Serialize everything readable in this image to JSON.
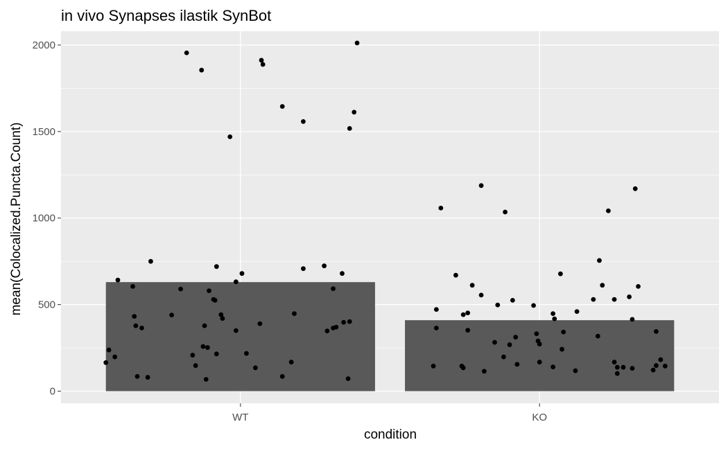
{
  "chart_data": {
    "type": "bar",
    "title": "in vivo Synapses ilastik SynBot",
    "xlabel": "condition",
    "ylabel": "mean(Colocalized.Puncta.Count)",
    "categories": [
      "WT",
      "KO"
    ],
    "values": [
      630,
      410
    ],
    "ylim": [
      -70,
      2080
    ],
    "yticks": [
      0,
      500,
      1000,
      1500,
      2000
    ],
    "grid": true,
    "legend": "none",
    "colors": {
      "panel": "#ebebeb",
      "grid": "#ffffff",
      "bar": "#595959",
      "point": "#000000"
    },
    "points": [
      {
        "condition": "WT",
        "offset": -0.45,
        "value": 165
      },
      {
        "condition": "WT",
        "offset": -0.44,
        "value": 238
      },
      {
        "condition": "WT",
        "offset": -0.42,
        "value": 198
      },
      {
        "condition": "WT",
        "offset": -0.41,
        "value": 642
      },
      {
        "condition": "WT",
        "offset": -0.36,
        "value": 605
      },
      {
        "condition": "WT",
        "offset": -0.355,
        "value": 432
      },
      {
        "condition": "WT",
        "offset": -0.35,
        "value": 378
      },
      {
        "condition": "WT",
        "offset": -0.345,
        "value": 85
      },
      {
        "condition": "WT",
        "offset": -0.33,
        "value": 365
      },
      {
        "condition": "WT",
        "offset": -0.31,
        "value": 80
      },
      {
        "condition": "WT",
        "offset": -0.3,
        "value": 750
      },
      {
        "condition": "WT",
        "offset": -0.23,
        "value": 440
      },
      {
        "condition": "WT",
        "offset": -0.2,
        "value": 590
      },
      {
        "condition": "WT",
        "offset": -0.18,
        "value": 1955
      },
      {
        "condition": "WT",
        "offset": -0.16,
        "value": 208
      },
      {
        "condition": "WT",
        "offset": -0.15,
        "value": 148
      },
      {
        "condition": "WT",
        "offset": -0.13,
        "value": 1855
      },
      {
        "condition": "WT",
        "offset": -0.125,
        "value": 258
      },
      {
        "condition": "WT",
        "offset": -0.12,
        "value": 378
      },
      {
        "condition": "WT",
        "offset": -0.115,
        "value": 68
      },
      {
        "condition": "WT",
        "offset": -0.11,
        "value": 252
      },
      {
        "condition": "WT",
        "offset": -0.105,
        "value": 580
      },
      {
        "condition": "WT",
        "offset": -0.09,
        "value": 530
      },
      {
        "condition": "WT",
        "offset": -0.085,
        "value": 525
      },
      {
        "condition": "WT",
        "offset": -0.08,
        "value": 215
      },
      {
        "condition": "WT",
        "offset": -0.08,
        "value": 720
      },
      {
        "condition": "WT",
        "offset": -0.065,
        "value": 442
      },
      {
        "condition": "WT",
        "offset": -0.06,
        "value": 420
      },
      {
        "condition": "WT",
        "offset": -0.035,
        "value": 1470
      },
      {
        "condition": "WT",
        "offset": -0.015,
        "value": 350
      },
      {
        "condition": "WT",
        "offset": -0.015,
        "value": 632
      },
      {
        "condition": "WT",
        "offset": 0.005,
        "value": 680
      },
      {
        "condition": "WT",
        "offset": 0.02,
        "value": 218
      },
      {
        "condition": "WT",
        "offset": 0.05,
        "value": 135
      },
      {
        "condition": "WT",
        "offset": 0.065,
        "value": 390
      },
      {
        "condition": "WT",
        "offset": 0.07,
        "value": 1912
      },
      {
        "condition": "WT",
        "offset": 0.075,
        "value": 1888
      },
      {
        "condition": "WT",
        "offset": 0.14,
        "value": 1645
      },
      {
        "condition": "WT",
        "offset": 0.14,
        "value": 85
      },
      {
        "condition": "WT",
        "offset": 0.17,
        "value": 168
      },
      {
        "condition": "WT",
        "offset": 0.18,
        "value": 448
      },
      {
        "condition": "WT",
        "offset": 0.21,
        "value": 1558
      },
      {
        "condition": "WT",
        "offset": 0.21,
        "value": 708
      },
      {
        "condition": "WT",
        "offset": 0.28,
        "value": 724
      },
      {
        "condition": "WT",
        "offset": 0.29,
        "value": 348
      },
      {
        "condition": "WT",
        "offset": 0.31,
        "value": 592
      },
      {
        "condition": "WT",
        "offset": 0.31,
        "value": 365
      },
      {
        "condition": "WT",
        "offset": 0.32,
        "value": 370
      },
      {
        "condition": "WT",
        "offset": 0.34,
        "value": 680
      },
      {
        "condition": "WT",
        "offset": 0.345,
        "value": 398
      },
      {
        "condition": "WT",
        "offset": 0.36,
        "value": 72
      },
      {
        "condition": "WT",
        "offset": 0.365,
        "value": 402
      },
      {
        "condition": "WT",
        "offset": 0.365,
        "value": 1518
      },
      {
        "condition": "WT",
        "offset": 0.38,
        "value": 1612
      },
      {
        "condition": "WT",
        "offset": 0.39,
        "value": 2012
      },
      {
        "condition": "KO",
        "offset": -0.355,
        "value": 145
      },
      {
        "condition": "KO",
        "offset": -0.345,
        "value": 472
      },
      {
        "condition": "KO",
        "offset": -0.345,
        "value": 365
      },
      {
        "condition": "KO",
        "offset": -0.33,
        "value": 1058
      },
      {
        "condition": "KO",
        "offset": -0.28,
        "value": 670
      },
      {
        "condition": "KO",
        "offset": -0.26,
        "value": 145
      },
      {
        "condition": "KO",
        "offset": -0.255,
        "value": 135
      },
      {
        "condition": "KO",
        "offset": -0.255,
        "value": 442
      },
      {
        "condition": "KO",
        "offset": -0.24,
        "value": 452
      },
      {
        "condition": "KO",
        "offset": -0.24,
        "value": 352
      },
      {
        "condition": "KO",
        "offset": -0.225,
        "value": 612
      },
      {
        "condition": "KO",
        "offset": -0.195,
        "value": 555
      },
      {
        "condition": "KO",
        "offset": -0.195,
        "value": 1188
      },
      {
        "condition": "KO",
        "offset": -0.185,
        "value": 115
      },
      {
        "condition": "KO",
        "offset": -0.15,
        "value": 282
      },
      {
        "condition": "KO",
        "offset": -0.14,
        "value": 498
      },
      {
        "condition": "KO",
        "offset": -0.12,
        "value": 198
      },
      {
        "condition": "KO",
        "offset": -0.115,
        "value": 1035
      },
      {
        "condition": "KO",
        "offset": -0.1,
        "value": 268
      },
      {
        "condition": "KO",
        "offset": -0.09,
        "value": 525
      },
      {
        "condition": "KO",
        "offset": -0.08,
        "value": 312
      },
      {
        "condition": "KO",
        "offset": -0.075,
        "value": 155
      },
      {
        "condition": "KO",
        "offset": -0.01,
        "value": 332
      },
      {
        "condition": "KO",
        "offset": -0.005,
        "value": 290
      },
      {
        "condition": "KO",
        "offset": 0.0,
        "value": 272
      },
      {
        "condition": "KO",
        "offset": 0.0,
        "value": 168
      },
      {
        "condition": "KO",
        "offset": -0.02,
        "value": 495
      },
      {
        "condition": "KO",
        "offset": 0.045,
        "value": 140
      },
      {
        "condition": "KO",
        "offset": 0.045,
        "value": 448
      },
      {
        "condition": "KO",
        "offset": 0.05,
        "value": 418
      },
      {
        "condition": "KO",
        "offset": 0.07,
        "value": 678
      },
      {
        "condition": "KO",
        "offset": 0.075,
        "value": 242
      },
      {
        "condition": "KO",
        "offset": 0.08,
        "value": 342
      },
      {
        "condition": "KO",
        "offset": 0.12,
        "value": 118
      },
      {
        "condition": "KO",
        "offset": 0.125,
        "value": 460
      },
      {
        "condition": "KO",
        "offset": 0.18,
        "value": 530
      },
      {
        "condition": "KO",
        "offset": 0.195,
        "value": 318
      },
      {
        "condition": "KO",
        "offset": 0.2,
        "value": 755
      },
      {
        "condition": "KO",
        "offset": 0.21,
        "value": 612
      },
      {
        "condition": "KO",
        "offset": 0.23,
        "value": 1042
      },
      {
        "condition": "KO",
        "offset": 0.25,
        "value": 168
      },
      {
        "condition": "KO",
        "offset": 0.25,
        "value": 530
      },
      {
        "condition": "KO",
        "offset": 0.26,
        "value": 138
      },
      {
        "condition": "KO",
        "offset": 0.26,
        "value": 102
      },
      {
        "condition": "KO",
        "offset": 0.28,
        "value": 138
      },
      {
        "condition": "KO",
        "offset": 0.3,
        "value": 545
      },
      {
        "condition": "KO",
        "offset": 0.31,
        "value": 132
      },
      {
        "condition": "KO",
        "offset": 0.31,
        "value": 415
      },
      {
        "condition": "KO",
        "offset": 0.32,
        "value": 1170
      },
      {
        "condition": "KO",
        "offset": 0.33,
        "value": 605
      },
      {
        "condition": "KO",
        "offset": 0.38,
        "value": 122
      },
      {
        "condition": "KO",
        "offset": 0.39,
        "value": 148
      },
      {
        "condition": "KO",
        "offset": 0.39,
        "value": 345
      },
      {
        "condition": "KO",
        "offset": 0.405,
        "value": 182
      },
      {
        "condition": "KO",
        "offset": 0.42,
        "value": 145
      }
    ]
  }
}
